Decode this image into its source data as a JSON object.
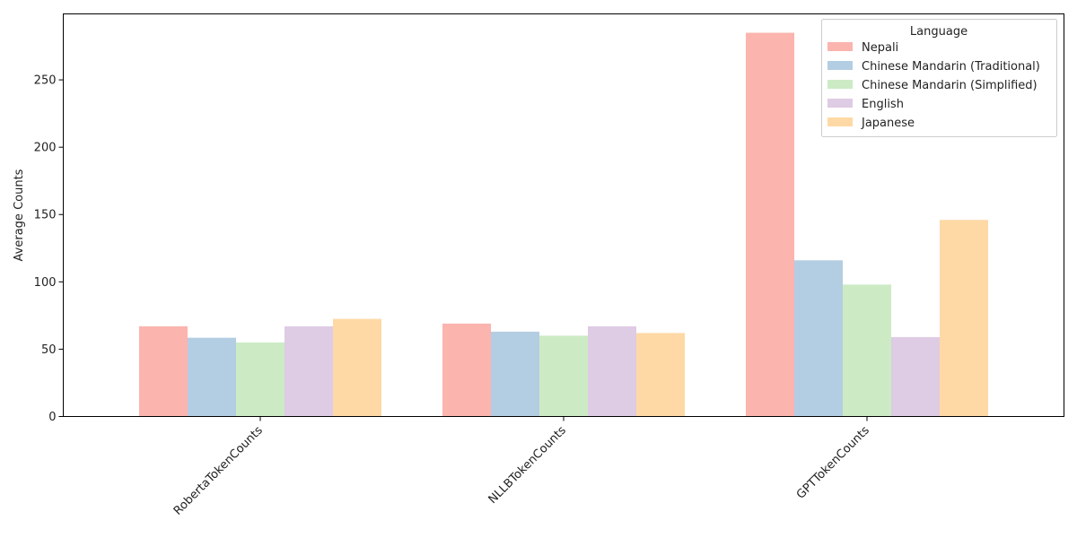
{
  "chart_data": {
    "type": "bar",
    "categories": [
      "RobertaTokenCounts",
      "NLLBTokenCounts",
      "GPTTokenCounts"
    ],
    "series": [
      {
        "name": "Nepali",
        "values": [
          67,
          69,
          285
        ],
        "color": "#fbb4ae"
      },
      {
        "name": "Chinese Mandarin (Traditional)",
        "values": [
          58.5,
          63,
          116
        ],
        "color": "#b3cde3"
      },
      {
        "name": "Chinese Mandarin (Simplified)",
        "values": [
          55,
          60,
          98
        ],
        "color": "#ccebc5"
      },
      {
        "name": "English",
        "values": [
          67,
          67,
          59
        ],
        "color": "#decbe4"
      },
      {
        "name": "Japanese",
        "values": [
          72.5,
          62,
          146
        ],
        "color": "#fed9a6"
      }
    ],
    "title": "",
    "xlabel": "",
    "ylabel": "Average Counts",
    "ylim": [
      0,
      299
    ],
    "yticks": [
      0,
      50,
      100,
      150,
      200,
      250
    ],
    "legend": {
      "title": "Language",
      "placement": "top-right"
    },
    "grid": false
  }
}
